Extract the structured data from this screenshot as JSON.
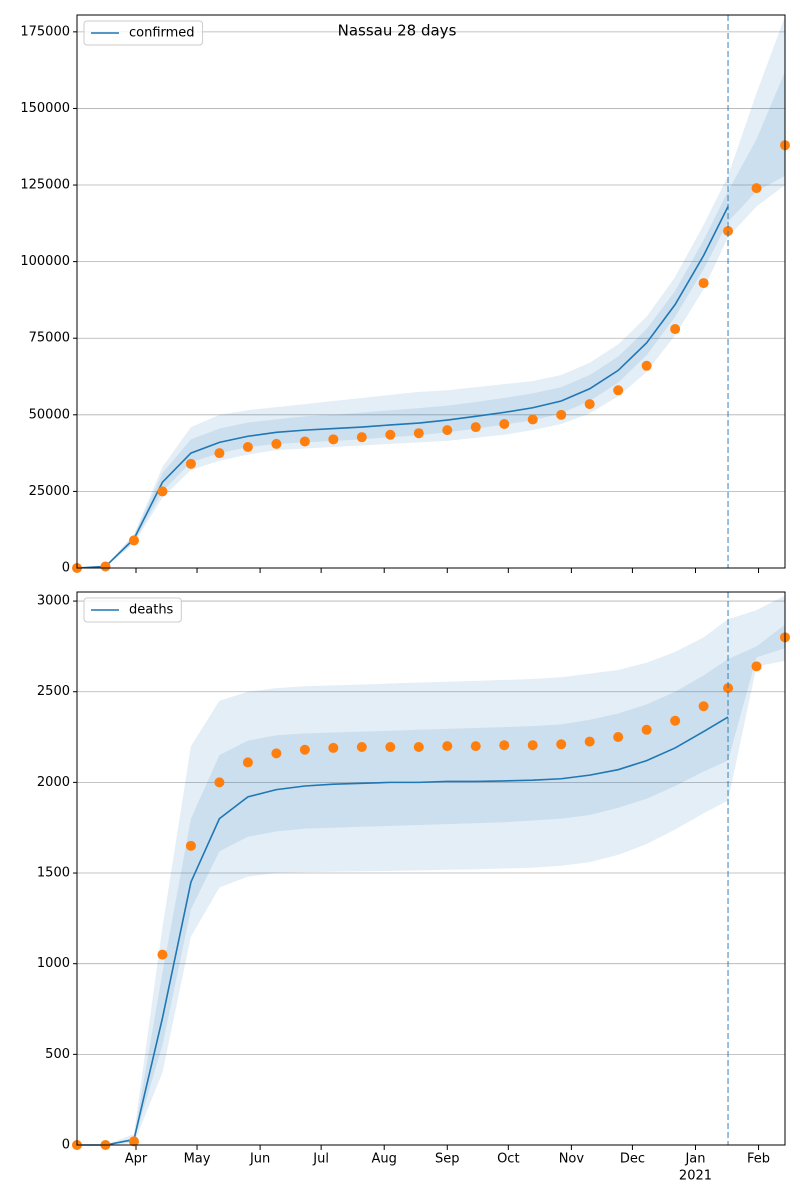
{
  "chart_data": [
    {
      "type": "line",
      "title": "Nassau 28 days",
      "x": [
        2,
        16,
        30,
        44,
        58,
        72,
        86,
        100,
        114,
        128,
        142,
        156,
        170,
        184,
        198,
        212,
        226,
        240,
        254,
        268,
        282,
        296,
        310,
        322,
        336,
        350
      ],
      "xlim": [
        2,
        350
      ],
      "xticks": [
        31,
        61,
        92,
        122,
        153,
        184,
        214,
        245,
        275,
        306,
        337
      ],
      "show_xtick_labels": false,
      "ylim": [
        0,
        180500
      ],
      "yticks": [
        0,
        25000,
        50000,
        75000,
        100000,
        125000,
        150000,
        175000
      ],
      "grid": true,
      "legend": "upper left",
      "vline": 322,
      "series": [
        {
          "name": "confirmed",
          "color": "#1f77b4",
          "values": [
            0,
            500,
            9500,
            28000,
            37500,
            41000,
            43000,
            44300,
            45000,
            45500,
            46000,
            46700,
            47300,
            48300,
            49500,
            50800,
            52300,
            54500,
            58500,
            64500,
            73500,
            86000,
            102000,
            118000,
            null,
            null
          ]
        },
        {
          "color": "#ff7f0e",
          "marker": "o",
          "values": [
            0,
            500,
            9000,
            25000,
            34000,
            37500,
            39500,
            40500,
            41300,
            42000,
            42700,
            43500,
            44000,
            45000,
            46000,
            47000,
            48500,
            50000,
            53500,
            58000,
            66000,
            78000,
            93000,
            110000,
            124000,
            138000
          ]
        }
      ],
      "bands": [
        {
          "color": "#1f77b4",
          "upper": [
            0,
            600,
            11000,
            33000,
            46000,
            50000,
            51500,
            52500,
            53500,
            54500,
            55500,
            56500,
            57500,
            58000,
            59000,
            60000,
            61000,
            63000,
            67000,
            73000,
            82000,
            95000,
            112000,
            128000,
            155000,
            180000
          ],
          "lower": [
            0,
            400,
            8000,
            23000,
            32000,
            35000,
            37000,
            38500,
            39000,
            39500,
            40000,
            40500,
            41000,
            41500,
            42500,
            43500,
            45000,
            47000,
            50500,
            56000,
            64000,
            76000,
            91000,
            108000,
            118000,
            125000
          ]
        },
        {
          "color": "#1f77b4",
          "upper": [
            0,
            550,
            10500,
            31000,
            42000,
            45500,
            47500,
            48500,
            49500,
            50000,
            50700,
            51500,
            52200,
            53000,
            54200,
            55500,
            57000,
            59000,
            63000,
            69000,
            78000,
            90500,
            107000,
            123000,
            140000,
            162000
          ],
          "lower": [
            0,
            450,
            8500,
            25000,
            34500,
            37500,
            39500,
            40500,
            41000,
            41500,
            42000,
            42700,
            43300,
            44300,
            45500,
            46800,
            48200,
            50500,
            54500,
            60500,
            69500,
            82000,
            97500,
            113000,
            123000,
            128000
          ]
        }
      ]
    },
    {
      "type": "line",
      "x": [
        2,
        16,
        30,
        44,
        58,
        72,
        86,
        100,
        114,
        128,
        142,
        156,
        170,
        184,
        198,
        212,
        226,
        240,
        254,
        268,
        282,
        296,
        310,
        322,
        336,
        350
      ],
      "xlim": [
        2,
        350
      ],
      "xticks": [
        {
          "value": 31,
          "label": "Apr"
        },
        {
          "value": 61,
          "label": "May"
        },
        {
          "value": 92,
          "label": "Jun"
        },
        {
          "value": 122,
          "label": "Jul"
        },
        {
          "value": 153,
          "label": "Aug"
        },
        {
          "value": 184,
          "label": "Sep"
        },
        {
          "value": 214,
          "label": "Oct"
        },
        {
          "value": 245,
          "label": "Nov"
        },
        {
          "value": 275,
          "label": "Dec"
        },
        {
          "value": 306,
          "label": "Jan"
        },
        {
          "value": 337,
          "label": "Feb"
        }
      ],
      "show_xtick_labels": true,
      "year_label": {
        "value": 306,
        "label": "2021"
      },
      "ylim": [
        0,
        3050
      ],
      "yticks": [
        0,
        500,
        1000,
        1500,
        2000,
        2500,
        3000
      ],
      "grid": true,
      "legend": "upper left",
      "vline": 322,
      "series": [
        {
          "name": "deaths",
          "color": "#1f77b4",
          "values": [
            0,
            0,
            30,
            700,
            1450,
            1800,
            1920,
            1960,
            1980,
            1990,
            1995,
            2000,
            2000,
            2005,
            2005,
            2008,
            2012,
            2020,
            2040,
            2070,
            2120,
            2190,
            2280,
            2360,
            null,
            null
          ]
        },
        {
          "color": "#ff7f0e",
          "marker": "o",
          "values": [
            0,
            0,
            20,
            1050,
            1650,
            2000,
            2110,
            2160,
            2180,
            2190,
            2195,
            2195,
            2195,
            2200,
            2200,
            2205,
            2205,
            2210,
            2225,
            2250,
            2290,
            2340,
            2420,
            2520,
            2640,
            2800
          ]
        }
      ],
      "bands": [
        {
          "color": "#1f77b4",
          "upper": [
            0,
            0,
            60,
            1200,
            2200,
            2450,
            2500,
            2520,
            2530,
            2535,
            2540,
            2545,
            2550,
            2555,
            2560,
            2565,
            2570,
            2580,
            2600,
            2620,
            2660,
            2720,
            2800,
            2900,
            2950,
            3030
          ],
          "lower": [
            0,
            0,
            10,
            400,
            1150,
            1420,
            1480,
            1500,
            1505,
            1508,
            1510,
            1512,
            1515,
            1518,
            1520,
            1525,
            1530,
            1540,
            1560,
            1600,
            1660,
            1740,
            1830,
            1900,
            2640,
            2670
          ]
        },
        {
          "color": "#1f77b4",
          "upper": [
            0,
            0,
            40,
            950,
            1800,
            2150,
            2230,
            2260,
            2270,
            2275,
            2280,
            2285,
            2290,
            2295,
            2300,
            2305,
            2310,
            2320,
            2345,
            2380,
            2430,
            2500,
            2590,
            2680,
            2750,
            2870
          ],
          "lower": [
            0,
            0,
            20,
            550,
            1300,
            1620,
            1700,
            1730,
            1745,
            1750,
            1755,
            1760,
            1765,
            1770,
            1775,
            1780,
            1790,
            1800,
            1820,
            1860,
            1910,
            1980,
            2060,
            2120,
            2690,
            2740
          ]
        }
      ]
    }
  ]
}
